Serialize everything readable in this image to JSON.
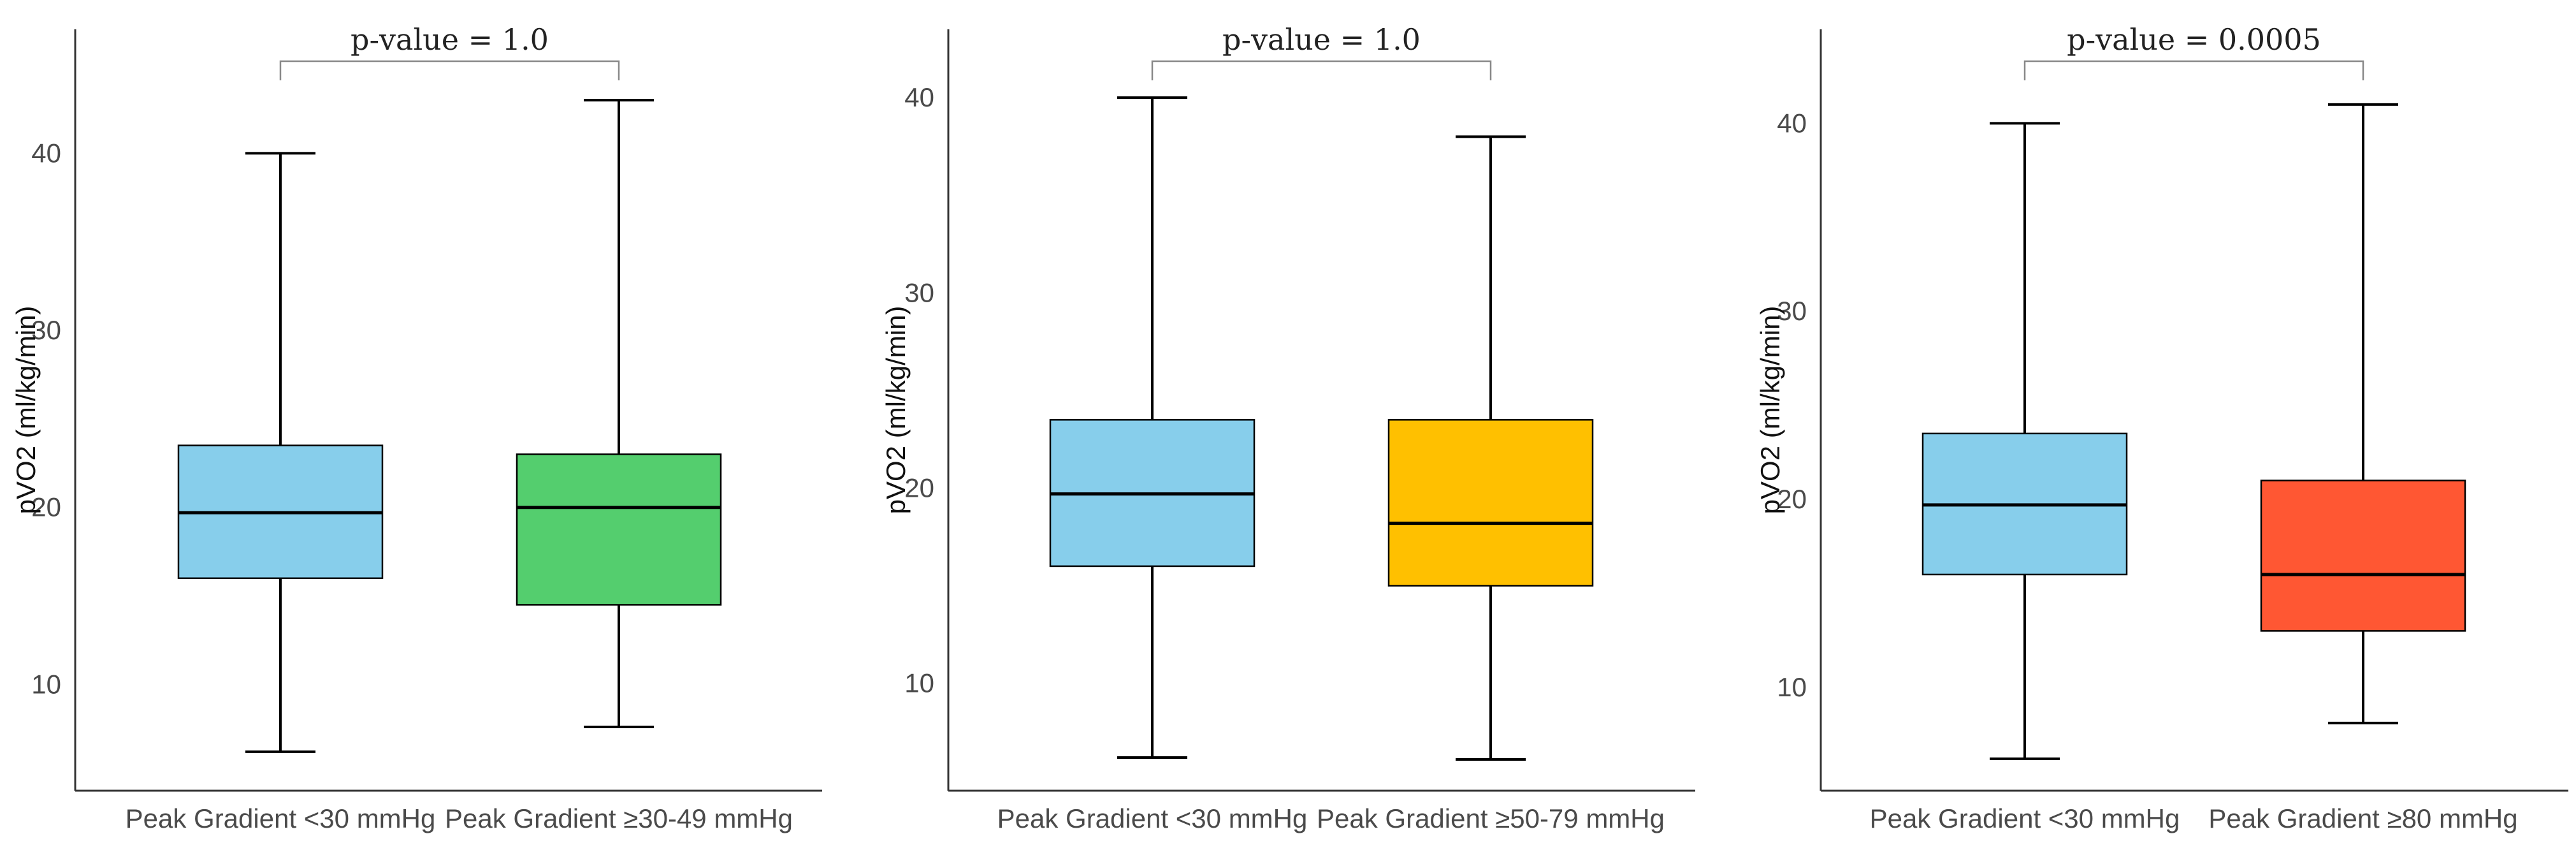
{
  "chart_data": [
    {
      "type": "box",
      "ylabel": "pVO2 (ml/kg/min)",
      "ylim": [
        4,
        47
      ],
      "yticks": [
        10,
        20,
        30,
        40
      ],
      "annotation": "p-value = 1.0",
      "categories": [
        "Peak Gradient <30 mmHg",
        "Peak Gradient ≥30-49 mmHg"
      ],
      "boxes": [
        {
          "label": "Peak Gradient <30 mmHg",
          "min": 6.2,
          "q1": 16.0,
          "median": 19.7,
          "q3": 23.5,
          "max": 40.0,
          "color": "#87CEEB"
        },
        {
          "label": "Peak Gradient ≥30-49 mmHg",
          "min": 7.6,
          "q1": 14.5,
          "median": 20.0,
          "q3": 23.0,
          "max": 43.0,
          "color": "#54CE6E"
        }
      ]
    },
    {
      "type": "box",
      "ylabel": "pVO2 (ml/kg/min)",
      "ylim": [
        4.5,
        43.5
      ],
      "yticks": [
        10,
        20,
        30,
        40
      ],
      "annotation": "p-value = 1.0",
      "categories": [
        "Peak Gradient <30 mmHg",
        "Peak Gradient ≥50-79 mmHg"
      ],
      "boxes": [
        {
          "label": "Peak Gradient <30 mmHg",
          "min": 6.2,
          "q1": 16.0,
          "median": 19.7,
          "q3": 23.5,
          "max": 40.0,
          "color": "#87CEEB"
        },
        {
          "label": "Peak Gradient ≥50-79 mmHg",
          "min": 6.1,
          "q1": 15.0,
          "median": 18.2,
          "q3": 23.5,
          "max": 38.0,
          "color": "#FFC000"
        }
      ]
    },
    {
      "type": "box",
      "ylabel": "pVO2 (ml/kg/min)",
      "ylim": [
        4.5,
        45
      ],
      "yticks": [
        10,
        20,
        30,
        40
      ],
      "annotation": "p-value = 0.0005",
      "categories": [
        "Peak Gradient <30 mmHg",
        "Peak Gradient ≥80 mmHg"
      ],
      "boxes": [
        {
          "label": "Peak Gradient <30 mmHg",
          "min": 6.2,
          "q1": 16.0,
          "median": 19.7,
          "q3": 23.5,
          "max": 40.0,
          "color": "#87CEEB"
        },
        {
          "label": "Peak Gradient ≥80 mmHg",
          "min": 8.1,
          "q1": 13.0,
          "median": 16.0,
          "q3": 21.0,
          "max": 41.0,
          "color": "#FF5733"
        }
      ]
    }
  ]
}
